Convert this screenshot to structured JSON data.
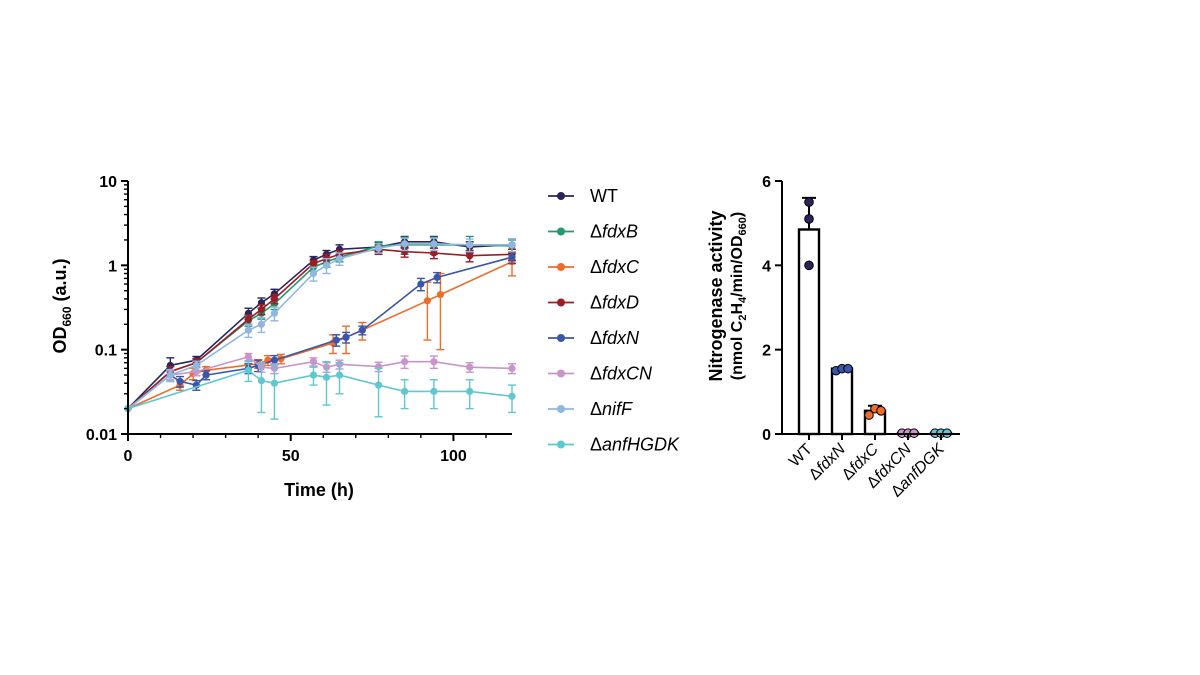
{
  "chart_data": [
    {
      "type": "line",
      "yscale": "log",
      "xlabel": "Time (h)",
      "ylabel": {
        "main": "OD",
        "sub": "660",
        "unit": " (a.u.)"
      },
      "xlim": [
        0,
        118
      ],
      "ylim": [
        0.01,
        10
      ],
      "xticks": [
        0,
        50,
        100
      ],
      "yticks": [
        0.01,
        0.1,
        1,
        10
      ],
      "ytick_labels": [
        "0.01",
        "0.1",
        "1",
        "10"
      ],
      "series": [
        {
          "name": "WT",
          "prefix": "",
          "color": "#2a2458",
          "x": [
            0,
            13,
            21,
            37,
            41,
            45,
            57,
            61,
            65,
            77,
            85,
            94,
            105,
            118
          ],
          "y": [
            0.02,
            0.065,
            0.075,
            0.27,
            0.36,
            0.46,
            1.15,
            1.35,
            1.55,
            1.65,
            1.9,
            1.9,
            1.65,
            1.75
          ],
          "err": [
            0,
            0.015,
            0.008,
            0.04,
            0.05,
            0.06,
            0.12,
            0.15,
            0.2,
            0.2,
            0.3,
            0.3,
            0.25,
            0.3
          ]
        },
        {
          "name": "fdxB",
          "prefix": "Δ",
          "color": "#23996e",
          "x": [
            0,
            13,
            21,
            37,
            41,
            45,
            57,
            61,
            65,
            77,
            85,
            94,
            105,
            118
          ],
          "y": [
            0.02,
            0.055,
            0.07,
            0.22,
            0.27,
            0.35,
            0.95,
            1.1,
            1.25,
            1.7,
            1.75,
            1.75,
            1.75,
            1.7
          ],
          "err": [
            0,
            0.008,
            0.008,
            0.03,
            0.04,
            0.05,
            0.1,
            0.15,
            0.15,
            0.2,
            0.4,
            0.4,
            0.45,
            0.3
          ]
        },
        {
          "name": "fdxC",
          "prefix": "Δ",
          "color": "#ee6d2b",
          "x": [
            0,
            16,
            20,
            24,
            40,
            43,
            47,
            63,
            67,
            72,
            92,
            96,
            118
          ],
          "y": [
            0.02,
            0.038,
            0.052,
            0.057,
            0.068,
            0.075,
            0.078,
            0.12,
            0.14,
            0.17,
            0.38,
            0.45,
            1.1
          ],
          "err": [
            0,
            0.005,
            0.008,
            0.006,
            0.008,
            0.01,
            0.01,
            0.03,
            0.05,
            0.04,
            0.25,
            0.35,
            0.35
          ]
        },
        {
          "name": "fdxD",
          "prefix": "Δ",
          "color": "#9a1d28",
          "x": [
            0,
            13,
            21,
            37,
            41,
            45,
            57,
            61,
            65,
            77,
            85,
            94,
            105,
            118
          ],
          "y": [
            0.02,
            0.055,
            0.07,
            0.23,
            0.3,
            0.4,
            1.05,
            1.2,
            1.35,
            1.55,
            1.45,
            1.4,
            1.3,
            1.35
          ],
          "err": [
            0,
            0.008,
            0.008,
            0.03,
            0.04,
            0.05,
            0.1,
            0.15,
            0.15,
            0.2,
            0.2,
            0.2,
            0.2,
            0.2
          ]
        },
        {
          "name": "fdxN",
          "prefix": "Δ",
          "color": "#3a56a8",
          "x": [
            0,
            13,
            16,
            21,
            24,
            37,
            40,
            45,
            64,
            67,
            72,
            90,
            95,
            118
          ],
          "y": [
            0.02,
            0.05,
            0.042,
            0.038,
            0.05,
            0.06,
            0.065,
            0.075,
            0.13,
            0.14,
            0.17,
            0.6,
            0.72,
            1.25
          ],
          "err": [
            0,
            0.008,
            0.006,
            0.005,
            0.006,
            0.008,
            0.01,
            0.01,
            0.02,
            0.02,
            0.02,
            0.1,
            0.1,
            0.2
          ]
        },
        {
          "name": "fdxCN",
          "prefix": "Δ",
          "color": "#c894c9",
          "x": [
            0,
            13,
            21,
            37,
            41,
            45,
            57,
            61,
            65,
            77,
            85,
            94,
            105,
            118
          ],
          "y": [
            0.02,
            0.05,
            0.055,
            0.082,
            0.062,
            0.06,
            0.072,
            0.062,
            0.067,
            0.063,
            0.072,
            0.072,
            0.062,
            0.06
          ],
          "err": [
            0,
            0.006,
            0.006,
            0.008,
            0.008,
            0.008,
            0.008,
            0.008,
            0.008,
            0.008,
            0.012,
            0.012,
            0.008,
            0.008
          ]
        },
        {
          "name": "nifF",
          "prefix": "Δ",
          "color": "#8fb7e0",
          "x": [
            0,
            13,
            21,
            37,
            41,
            45,
            57,
            61,
            65,
            77,
            85,
            94,
            105,
            118
          ],
          "y": [
            0.02,
            0.05,
            0.065,
            0.17,
            0.2,
            0.27,
            0.8,
            1.0,
            1.2,
            1.6,
            1.8,
            1.8,
            1.75,
            1.75
          ],
          "err": [
            0,
            0.008,
            0.008,
            0.03,
            0.04,
            0.05,
            0.15,
            0.2,
            0.2,
            0.2,
            0.3,
            0.3,
            0.3,
            0.3
          ]
        },
        {
          "name": "anfHGDK",
          "prefix": "Δ",
          "color": "#5ec7cf",
          "x": [
            0,
            37,
            41,
            45,
            57,
            61,
            65,
            77,
            85,
            94,
            105,
            118
          ],
          "y": [
            0.02,
            0.057,
            0.043,
            0.04,
            0.05,
            0.047,
            0.05,
            0.038,
            0.032,
            0.032,
            0.032,
            0.028
          ],
          "err": [
            0,
            0.015,
            0.025,
            0.025,
            0.012,
            0.025,
            0.02,
            0.022,
            0.012,
            0.012,
            0.012,
            0.01
          ]
        }
      ]
    },
    {
      "type": "bar",
      "ylabel_line1": "Nitrogenase activity",
      "ylabel_line2": {
        "a": "(nmol C",
        "b": "2",
        "c": "H",
        "d": "4",
        "e": "/min/OD",
        "f": "660",
        "g": ")"
      },
      "ylim": [
        0,
        6
      ],
      "yticks": [
        0,
        2,
        4,
        6
      ],
      "ytick_labels": [
        "0",
        "2",
        "4",
        "6"
      ],
      "categories": [
        {
          "label": "WT",
          "prefix": ""
        },
        {
          "label": "fdxN",
          "prefix": "Δ"
        },
        {
          "label": "fdxC",
          "prefix": "Δ"
        },
        {
          "label": "fdxCN",
          "prefix": "Δ"
        },
        {
          "label": "anfDGK",
          "prefix": "Δ"
        }
      ],
      "values": [
        4.85,
        1.55,
        0.55,
        0.02,
        0.02
      ],
      "errors": [
        0.75,
        0.05,
        0.12,
        0.01,
        0.01
      ],
      "points": [
        [
          5.5,
          5.1,
          4.0
        ],
        [
          1.5,
          1.55,
          1.55
        ],
        [
          0.45,
          0.6,
          0.55
        ],
        [
          0.02,
          0.02,
          0.02
        ],
        [
          0.02,
          0.02,
          0.02
        ]
      ],
      "point_colors": [
        "#2a2458",
        "#3a56a8",
        "#ee6d2b",
        "#c894c9",
        "#5ec7cf"
      ]
    }
  ]
}
